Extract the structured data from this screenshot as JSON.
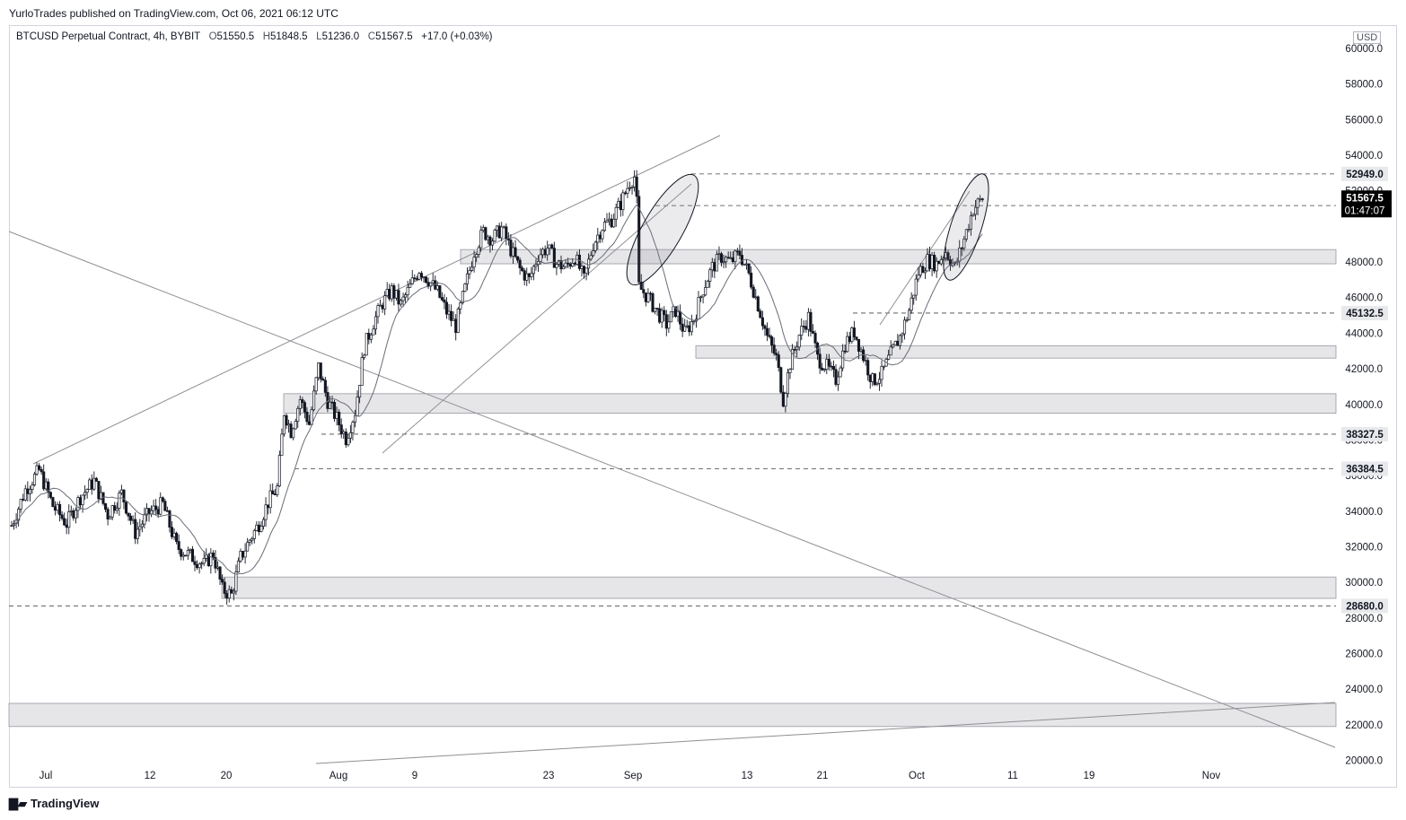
{
  "publisher": "YurloTrades published on TradingView.com, Oct 06, 2021 06:12 UTC",
  "legend": {
    "symbol": "BTCUSD Perpetual Contract, 4h, BYBIT",
    "o_label": "O",
    "o": "51550.5",
    "h_label": "H",
    "h": "51848.5",
    "l_label": "L",
    "l": "51236.0",
    "c_label": "C",
    "c": "51567.5",
    "change": "+17.0 (+0.03%)"
  },
  "currency": "USD",
  "brand": "TradingView",
  "colors": {
    "bull": "#131722",
    "bear": "#131722",
    "zone": "#e6e6e8",
    "line": "#8f8f96",
    "current_label_bg": "#000000"
  },
  "chart_data": {
    "type": "candlestick",
    "timeframe": "4h",
    "x_ticks": [
      "Jul",
      "12",
      "20",
      "Aug",
      "9",
      "23",
      "Sep",
      "13",
      "21",
      "Oct",
      "11",
      "19",
      "Nov"
    ],
    "y_ticks": [
      20000,
      22000,
      24000,
      26000,
      28000,
      30000,
      32000,
      34000,
      36000,
      38000,
      40000,
      42000,
      44000,
      46000,
      48000,
      52000,
      54000,
      56000,
      58000,
      60000
    ],
    "ylim": [
      20000,
      60000
    ],
    "current_price": {
      "value": "51567.5",
      "countdown": "01:47:07"
    },
    "price_levels": [
      {
        "value": "52949.0",
        "style": "dashed"
      },
      {
        "value": "51172.0",
        "style": "dashed"
      },
      {
        "value": "45132.5",
        "style": "dashed"
      },
      {
        "value": "38327.5",
        "style": "dashed"
      },
      {
        "value": "36384.5",
        "style": "dashed"
      },
      {
        "value": "28680.0",
        "style": "dashed"
      }
    ],
    "zones": [
      {
        "from": 47900,
        "to": 48700
      },
      {
        "from": 42600,
        "to": 43300
      },
      {
        "from": 39500,
        "to": 40600
      },
      {
        "from": 29100,
        "to": 30300
      },
      {
        "from": 21900,
        "to": 23200
      }
    ],
    "price_path": [
      [
        0,
        33200
      ],
      [
        3,
        35200
      ],
      [
        6,
        36300
      ],
      [
        9,
        34300
      ],
      [
        12,
        33300
      ],
      [
        15,
        34800
      ],
      [
        18,
        35700
      ],
      [
        21,
        33800
      ],
      [
        24,
        35000
      ],
      [
        27,
        32800
      ],
      [
        30,
        33900
      ],
      [
        33,
        34400
      ],
      [
        36,
        32000
      ],
      [
        39,
        31500
      ],
      [
        42,
        31000
      ],
      [
        44,
        31600
      ],
      [
        46,
        29600
      ],
      [
        48,
        29300
      ],
      [
        50,
        31400
      ],
      [
        52,
        32400
      ],
      [
        54,
        33300
      ],
      [
        56,
        34500
      ],
      [
        58,
        35300
      ],
      [
        59.5,
        39600
      ],
      [
        61,
        38500
      ],
      [
        63,
        40300
      ],
      [
        65,
        38900
      ],
      [
        67,
        42100
      ],
      [
        69,
        40200
      ],
      [
        71,
        39200
      ],
      [
        73,
        38100
      ],
      [
        75,
        39600
      ],
      [
        77,
        43200
      ],
      [
        79,
        44600
      ],
      [
        81,
        45700
      ],
      [
        83,
        46400
      ],
      [
        85,
        45600
      ],
      [
        87,
        46600
      ],
      [
        89,
        47600
      ],
      [
        91,
        47000
      ],
      [
        93,
        46300
      ],
      [
        95,
        45200
      ],
      [
        97,
        44400
      ],
      [
        99,
        46500
      ],
      [
        101,
        48600
      ],
      [
        103,
        49700
      ],
      [
        105,
        49300
      ],
      [
        107,
        49900
      ],
      [
        109,
        48700
      ],
      [
        111,
        47600
      ],
      [
        113,
        47000
      ],
      [
        115,
        48400
      ],
      [
        117,
        48800
      ],
      [
        119,
        47900
      ],
      [
        121,
        47700
      ],
      [
        123,
        48300
      ],
      [
        125,
        47000
      ],
      [
        127,
        49000
      ],
      [
        129,
        50000
      ],
      [
        131,
        50400
      ],
      [
        133,
        51300
      ],
      [
        135,
        52500
      ],
      [
        136,
        52800
      ],
      [
        136.6,
        51000
      ],
      [
        137,
        46600
      ],
      [
        139,
        46000
      ],
      [
        141,
        45200
      ],
      [
        143,
        44500
      ],
      [
        145,
        45300
      ],
      [
        147,
        44000
      ],
      [
        149,
        44800
      ],
      [
        151,
        46500
      ],
      [
        153,
        47700
      ],
      [
        155,
        48300
      ],
      [
        157,
        48000
      ],
      [
        159,
        48500
      ],
      [
        161,
        47300
      ],
      [
        163,
        45600
      ],
      [
        165,
        43800
      ],
      [
        167,
        42600
      ],
      [
        168.5,
        40300
      ],
      [
        170,
        42300
      ],
      [
        172,
        43900
      ],
      [
        174,
        44900
      ],
      [
        176,
        42600
      ],
      [
        178,
        42100
      ],
      [
        180,
        41400
      ],
      [
        182,
        43400
      ],
      [
        184,
        44100
      ],
      [
        186,
        42700
      ],
      [
        188,
        41300
      ],
      [
        190,
        41700
      ],
      [
        192,
        42800
      ],
      [
        194,
        43800
      ],
      [
        196,
        45300
      ],
      [
        198,
        47400
      ],
      [
        200,
        48100
      ],
      [
        202,
        47900
      ],
      [
        204,
        48600
      ],
      [
        206,
        47700
      ],
      [
        208,
        49300
      ],
      [
        210,
        51000
      ],
      [
        212,
        51567.5
      ]
    ]
  }
}
